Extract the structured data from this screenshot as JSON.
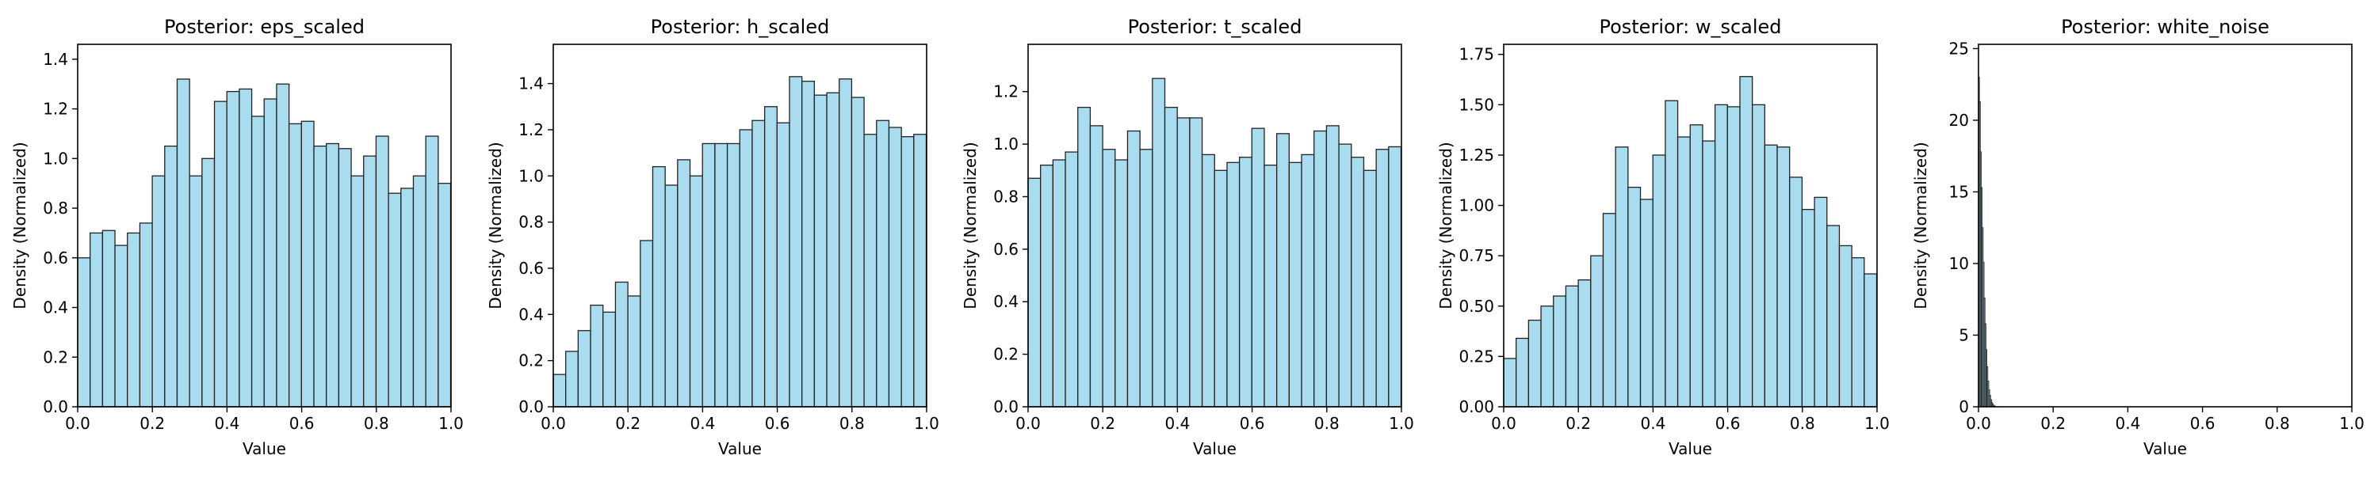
{
  "chart_data": [
    {
      "type": "bar",
      "title": "Posterior: eps_scaled",
      "xlabel": "Value",
      "ylabel": "Density (Normalized)",
      "xlim": [
        0,
        1
      ],
      "ylim": [
        0,
        1.46
      ],
      "xticks": [
        "0.0",
        "0.2",
        "0.4",
        "0.6",
        "0.8",
        "1.0"
      ],
      "yticks": [
        "0.0",
        "0.2",
        "0.4",
        "0.6",
        "0.8",
        "1.0",
        "1.2",
        "1.4"
      ],
      "bin_start": 0,
      "bin_width": 0.0333,
      "values": [
        0.6,
        0.7,
        0.71,
        0.65,
        0.7,
        0.74,
        0.93,
        1.05,
        1.32,
        0.93,
        1.0,
        1.23,
        1.27,
        1.28,
        1.17,
        1.24,
        1.3,
        1.14,
        1.15,
        1.05,
        1.06,
        1.04,
        0.93,
        1.01,
        1.09,
        0.86,
        0.88,
        0.93,
        1.09,
        0.9
      ]
    },
    {
      "type": "bar",
      "title": "Posterior: h_scaled",
      "xlabel": "Value",
      "ylabel": "Density (Normalized)",
      "xlim": [
        0,
        1
      ],
      "ylim": [
        0,
        1.57
      ],
      "xticks": [
        "0.0",
        "0.2",
        "0.4",
        "0.6",
        "0.8",
        "1.0"
      ],
      "yticks": [
        "0.0",
        "0.2",
        "0.4",
        "0.6",
        "0.8",
        "1.0",
        "1.2",
        "1.4"
      ],
      "bin_start": 0,
      "bin_width": 0.0333,
      "values": [
        0.14,
        0.24,
        0.33,
        0.44,
        0.41,
        0.54,
        0.48,
        0.72,
        1.04,
        0.96,
        1.07,
        1.0,
        1.14,
        1.14,
        1.14,
        1.2,
        1.24,
        1.3,
        1.23,
        1.43,
        1.41,
        1.35,
        1.36,
        1.42,
        1.34,
        1.18,
        1.24,
        1.21,
        1.17,
        1.18
      ]
    },
    {
      "type": "bar",
      "title": "Posterior: t_scaled",
      "xlabel": "Value",
      "ylabel": "Density (Normalized)",
      "xlim": [
        0,
        1
      ],
      "ylim": [
        0,
        1.38
      ],
      "xticks": [
        "0.0",
        "0.2",
        "0.4",
        "0.6",
        "0.8",
        "1.0"
      ],
      "yticks": [
        "0.0",
        "0.2",
        "0.4",
        "0.6",
        "0.8",
        "1.0",
        "1.2"
      ],
      "bin_start": 0,
      "bin_width": 0.0333,
      "values": [
        0.87,
        0.92,
        0.94,
        0.97,
        1.14,
        1.07,
        0.98,
        0.94,
        1.05,
        0.98,
        1.25,
        1.14,
        1.1,
        1.1,
        0.96,
        0.9,
        0.93,
        0.95,
        1.06,
        0.92,
        1.04,
        0.93,
        0.96,
        1.05,
        1.07,
        1.0,
        0.95,
        0.9,
        0.98,
        0.99
      ]
    },
    {
      "type": "bar",
      "title": "Posterior: w_scaled",
      "xlabel": "Value",
      "ylabel": "Density (Normalized)",
      "xlim": [
        0,
        1
      ],
      "ylim": [
        0,
        1.8
      ],
      "xticks": [
        "0.0",
        "0.2",
        "0.4",
        "0.6",
        "0.8",
        "1.0"
      ],
      "yticks": [
        "0.00",
        "0.25",
        "0.50",
        "0.75",
        "1.00",
        "1.25",
        "1.50",
        "1.75"
      ],
      "bin_start": 0,
      "bin_width": 0.0333,
      "values": [
        0.24,
        0.34,
        0.43,
        0.5,
        0.55,
        0.6,
        0.63,
        0.75,
        0.96,
        1.29,
        1.09,
        1.03,
        1.25,
        1.52,
        1.34,
        1.4,
        1.32,
        1.5,
        1.49,
        1.64,
        1.5,
        1.3,
        1.29,
        1.14,
        0.98,
        1.04,
        0.9,
        0.8,
        0.74,
        0.66
      ]
    },
    {
      "type": "bar",
      "title": "Posterior: white_noise",
      "xlabel": "Value",
      "ylabel": "Density (Normalized)",
      "xlim": [
        0,
        1
      ],
      "ylim": [
        0,
        25.3
      ],
      "xticks": [
        "0.0",
        "0.2",
        "0.4",
        "0.6",
        "0.8",
        "1.0"
      ],
      "yticks": [
        "0",
        "5",
        "10",
        "15",
        "20",
        "25"
      ],
      "bin_start": 0,
      "bin_width": 0.0025,
      "values": [
        23.0,
        21.3,
        17.8,
        15.3,
        12.5,
        10.1,
        7.6,
        5.8,
        4.0,
        2.8,
        1.8,
        1.2,
        0.8,
        0.5,
        0.3,
        0.2,
        0.1,
        0.05
      ]
    }
  ]
}
